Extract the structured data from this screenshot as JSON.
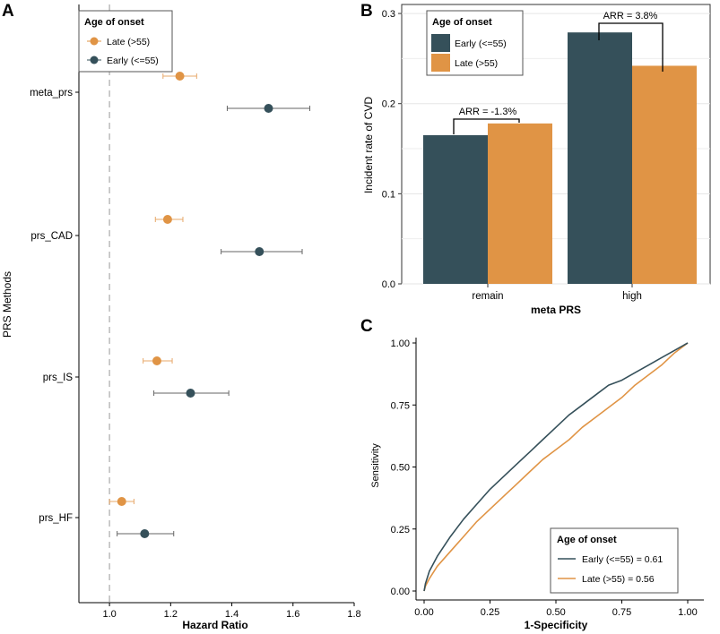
{
  "colors": {
    "late": "#E09445",
    "early": "#35505A",
    "refline": "#BBBBBB",
    "axis": "#000000",
    "grid": "#E5E5E5"
  },
  "panel_letters": [
    "A",
    "B",
    "C"
  ],
  "chart_data": [
    {
      "panel": "A",
      "type": "scatter",
      "subtype": "forest-plot",
      "xlabel": "Hazard Ratio",
      "ylabel": "PRS Methods",
      "xlim": [
        0.9,
        1.8
      ],
      "xticks": [
        "1.0",
        "1.2",
        "1.4",
        "1.6",
        "1.8"
      ],
      "xtick_values": [
        1.0,
        1.2,
        1.4,
        1.6,
        1.8
      ],
      "reference_line": 1.0,
      "categories": [
        "meta_prs",
        "prs_CAD",
        "prs_IS",
        "prs_HF"
      ],
      "legend": {
        "title": "Age of onset",
        "entries": [
          "Late (>55)",
          "Early (<=55)"
        ],
        "position": "top-left"
      },
      "series": [
        {
          "name": "Late (>55)",
          "color_key": "late",
          "hr": [
            1.23,
            1.19,
            1.155,
            1.04
          ],
          "lower": [
            1.175,
            1.15,
            1.11,
            1.0
          ],
          "upper": [
            1.285,
            1.24,
            1.205,
            1.08
          ]
        },
        {
          "name": "Early (<=55)",
          "color_key": "early",
          "hr": [
            1.52,
            1.49,
            1.265,
            1.115
          ],
          "lower": [
            1.385,
            1.365,
            1.145,
            1.025
          ],
          "upper": [
            1.655,
            1.63,
            1.39,
            1.21
          ]
        }
      ]
    },
    {
      "panel": "B",
      "type": "bar",
      "xlabel": "meta PRS",
      "ylabel": "Incident rate of CVD",
      "ylim": [
        0,
        0.31
      ],
      "yticks": [
        "0.0",
        "0.1",
        "0.2",
        "0.3"
      ],
      "ytick_values": [
        0,
        0.1,
        0.2,
        0.3
      ],
      "categories": [
        "remain",
        "high"
      ],
      "legend": {
        "title": "Age of onset",
        "entries": [
          "Early (<=55)",
          "Late (>55)"
        ],
        "position": "top-left"
      },
      "series": [
        {
          "name": "Early (<=55)",
          "color_key": "early",
          "values": [
            0.165,
            0.279
          ]
        },
        {
          "name": "Late (>55)",
          "color_key": "late",
          "values": [
            0.178,
            0.242
          ]
        }
      ],
      "annotations": [
        "ARR = -1.3%",
        "ARR = 3.8%"
      ]
    },
    {
      "panel": "C",
      "type": "line",
      "subtype": "roc",
      "xlabel": "1-Specificity",
      "ylabel": "Sensitivity",
      "xlim": [
        0,
        1
      ],
      "ylim": [
        0,
        1
      ],
      "xticks": [
        "0.00",
        "0.25",
        "0.50",
        "0.75",
        "1.00"
      ],
      "yticks": [
        "0.00",
        "0.25",
        "0.50",
        "0.75",
        "1.00"
      ],
      "tick_values": [
        0,
        0.25,
        0.5,
        0.75,
        1.0
      ],
      "legend": {
        "title": "Age of onset",
        "entries": [
          "Early (<=55) = 0.61",
          "Late (>55) = 0.56"
        ],
        "position": "bottom-right"
      },
      "series": [
        {
          "name": "Early (<=55) = 0.61",
          "color_key": "early",
          "x": [
            0,
            0.005,
            0.02,
            0.05,
            0.1,
            0.15,
            0.2,
            0.25,
            0.3,
            0.35,
            0.4,
            0.45,
            0.5,
            0.55,
            0.6,
            0.65,
            0.7,
            0.75,
            0.8,
            0.85,
            0.9,
            0.95,
            1.0
          ],
          "y": [
            0,
            0.03,
            0.08,
            0.14,
            0.22,
            0.29,
            0.35,
            0.41,
            0.46,
            0.51,
            0.56,
            0.61,
            0.66,
            0.71,
            0.75,
            0.79,
            0.83,
            0.85,
            0.88,
            0.91,
            0.94,
            0.97,
            1.0
          ]
        },
        {
          "name": "Late (>55) = 0.56",
          "color_key": "late",
          "x": [
            0,
            0.005,
            0.02,
            0.05,
            0.1,
            0.15,
            0.2,
            0.25,
            0.3,
            0.35,
            0.4,
            0.45,
            0.5,
            0.55,
            0.6,
            0.65,
            0.7,
            0.75,
            0.8,
            0.85,
            0.9,
            0.95,
            1.0
          ],
          "y": [
            0,
            0.02,
            0.05,
            0.1,
            0.16,
            0.22,
            0.28,
            0.33,
            0.38,
            0.43,
            0.48,
            0.53,
            0.57,
            0.61,
            0.66,
            0.7,
            0.74,
            0.78,
            0.83,
            0.87,
            0.91,
            0.96,
            1.0
          ]
        }
      ]
    }
  ]
}
